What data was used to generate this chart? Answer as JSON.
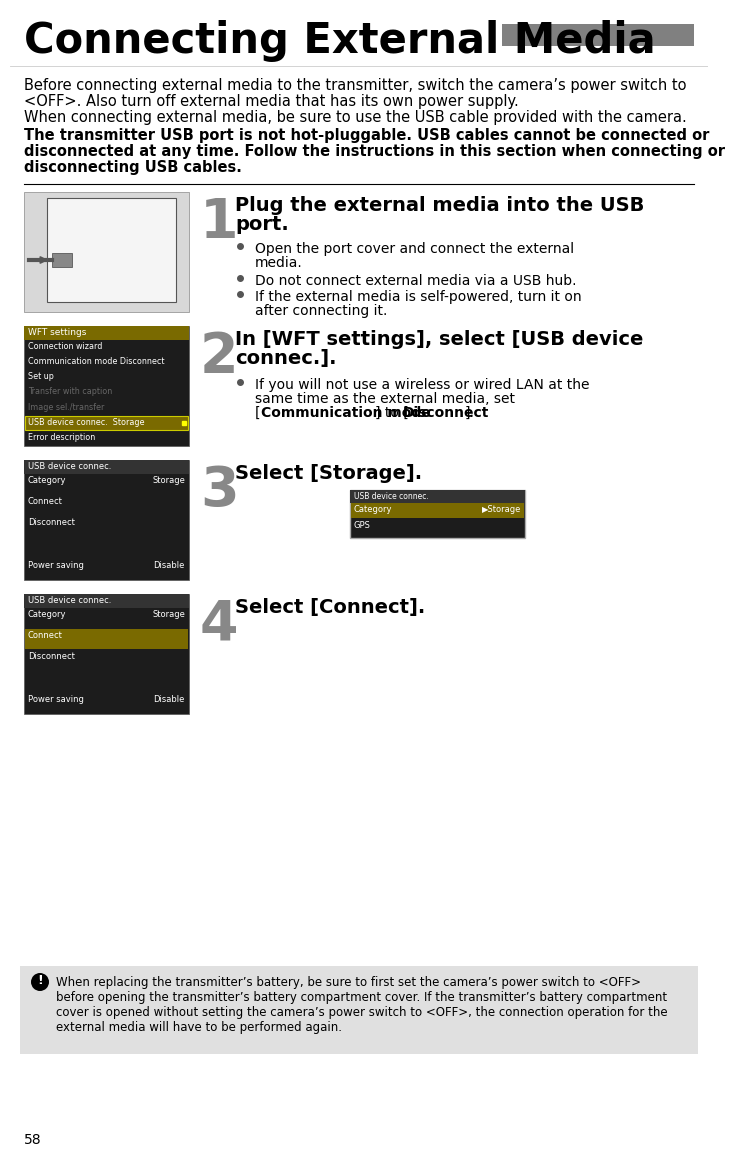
{
  "title": "Connecting External Media",
  "title_fontsize": 30,
  "title_color": "#000000",
  "title_bar_color": "#808080",
  "page_bg": "#ffffff",
  "page_number": "58",
  "intro_text_1": "Before connecting external media to the transmitter, switch the camera’s power switch to",
  "intro_text_2": "<OFF>. Also turn off external media that has its own power supply.",
  "intro_text_3": "When connecting external media, be sure to use the USB cable provided with the camera.",
  "bold_text_1": "The transmitter USB port is not hot-pluggable. USB cables cannot be connected or",
  "bold_text_2": "disconnected at any time. Follow the instructions in this section when connecting or",
  "bold_text_3": "disconnecting USB cables.",
  "step1_heading_1": "Plug the external media into the USB",
  "step1_heading_2": "port.",
  "step1_b1": "Open the port cover and connect the external",
  "step1_b1b": "media.",
  "step1_b2": "Do not connect external media via a USB hub.",
  "step1_b3": "If the external media is self-powered, turn it on",
  "step1_b3b": "after connecting it.",
  "step2_heading_1": "In [WFT settings], select [USB device",
  "step2_heading_2": "connec.].",
  "step2_b1": "If you will not use a wireless or wired LAN at the",
  "step2_b1b": "same time as the external media, set",
  "step2_b1c_plain": "[",
  "step2_b1c_bold": "Communication mode",
  "step2_b1c_plain2": "] to [",
  "step2_b1c_bold2": "Disconnect",
  "step2_b1c_plain3": "].",
  "step3_heading": "Select [Storage].",
  "step4_heading": "Select [Connect].",
  "note_text_1": "When replacing the transmitter’s battery, be sure to first set the camera’s power switch to <OFF>",
  "note_text_2": "before opening the transmitter’s battery compartment cover. If the transmitter’s battery compartment",
  "note_text_3": "cover is opened without setting the camera’s power switch to <OFF>, the connection operation for the",
  "note_text_4": "external media will have to be performed again.",
  "note_bg": "#e0e0e0",
  "separator_color": "#aaaaaa",
  "wft_title_bg": "#7a6a00",
  "wft_bg": "#1c1c1c",
  "wft_highlight_bg": "#7a6a00",
  "wft_highlight_border": "#cccc00",
  "usb_bg": "#1c1c1c",
  "usb_title_bg": "#1c1c1c",
  "usb_highlight_bg": "#7a6a00",
  "sub_screen_bg": "#1c1c1c",
  "sub_screen_highlight": "#7a6a00"
}
